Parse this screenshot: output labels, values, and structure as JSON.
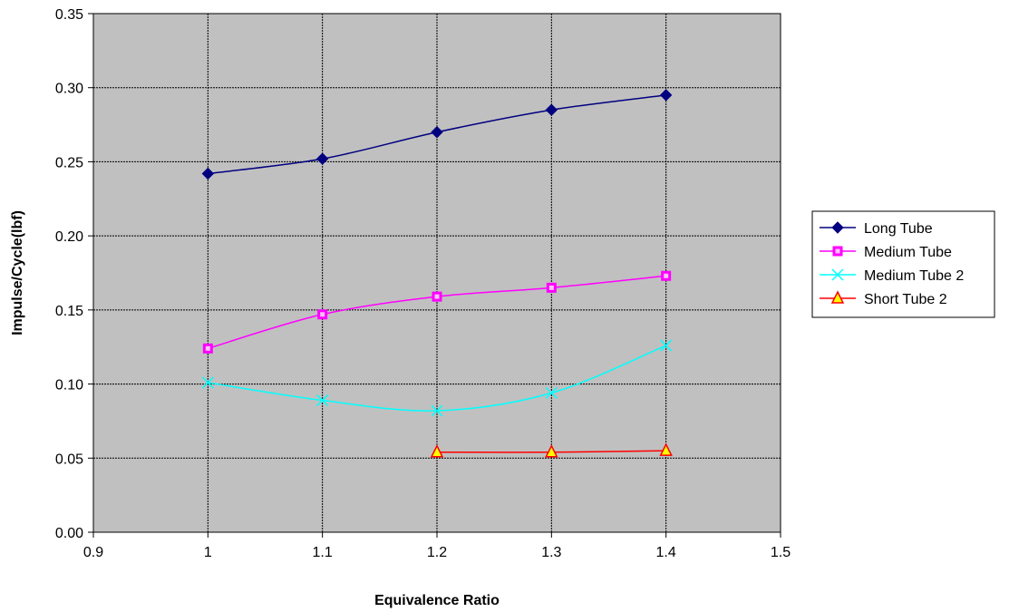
{
  "chart_data": {
    "type": "line",
    "title": "",
    "xlabel": "Equivalence Ratio",
    "ylabel": "Impulse/Cycle(lbf)",
    "xlim": [
      0.9,
      1.5
    ],
    "ylim": [
      0,
      0.35
    ],
    "x_ticks": [
      "0.9",
      "1",
      "1.1",
      "1.2",
      "1.3",
      "1.4",
      "1.5"
    ],
    "y_ticks": [
      "0.00",
      "0.05",
      "0.10",
      "0.15",
      "0.20",
      "0.25",
      "0.30",
      "0.35"
    ],
    "grid": true,
    "legend_position": "right",
    "plot_background": "#c0c0c0",
    "series": [
      {
        "name": "Long Tube",
        "color": "#000080",
        "marker": "diamond",
        "points": [
          [
            1.0,
            0.242
          ],
          [
            1.1,
            0.252
          ],
          [
            1.2,
            0.27
          ],
          [
            1.3,
            0.285
          ],
          [
            1.4,
            0.295
          ]
        ]
      },
      {
        "name": "Medium Tube",
        "color": "#ff00ff",
        "marker": "square",
        "points": [
          [
            1.0,
            0.124
          ],
          [
            1.1,
            0.147
          ],
          [
            1.2,
            0.159
          ],
          [
            1.3,
            0.165
          ],
          [
            1.4,
            0.173
          ]
        ]
      },
      {
        "name": "Medium Tube 2",
        "color": "#00ffff",
        "marker": "x",
        "points": [
          [
            1.0,
            0.101
          ],
          [
            1.1,
            0.089
          ],
          [
            1.2,
            0.082
          ],
          [
            1.3,
            0.094
          ],
          [
            1.4,
            0.126
          ]
        ]
      },
      {
        "name": "Short Tube 2",
        "color": "#ff0000",
        "marker": "triangle",
        "marker_fill": "#ffff00",
        "points": [
          [
            1.2,
            0.054
          ],
          [
            1.3,
            0.054
          ],
          [
            1.4,
            0.055
          ]
        ]
      }
    ]
  }
}
